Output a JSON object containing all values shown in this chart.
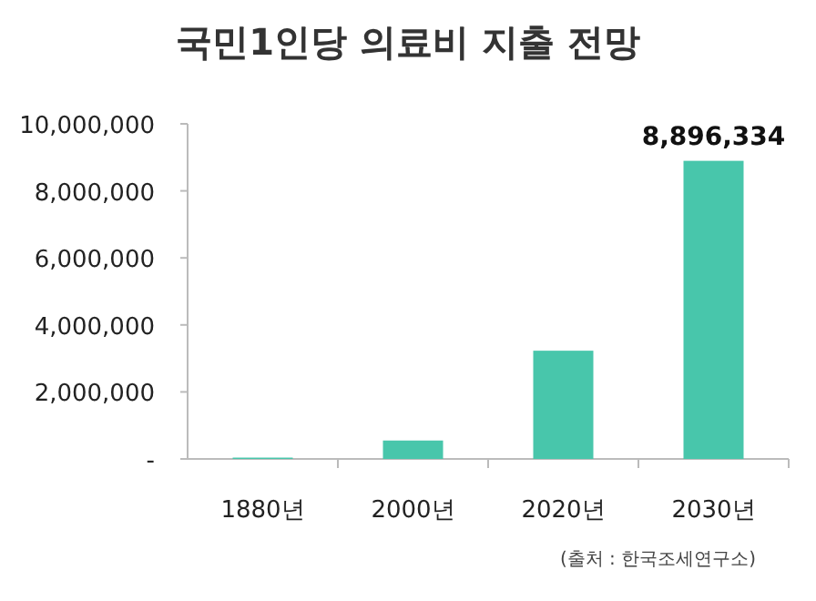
{
  "chart_data": {
    "type": "bar",
    "title": "국민1인당 의료비 지출 전망",
    "categories": [
      "1880년",
      "2000년",
      "2020년",
      "2030년"
    ],
    "values": [
      40000,
      550000,
      3230000,
      8896334
    ],
    "value_labels": [
      null,
      null,
      null,
      "8,896,334"
    ],
    "color": "#48c6ab",
    "ylim": [
      0,
      10000000
    ],
    "yticks": [
      {
        "value": 0,
        "label": "-"
      },
      {
        "value": 2000000,
        "label": "2,000,000"
      },
      {
        "value": 4000000,
        "label": "4,000,000"
      },
      {
        "value": 6000000,
        "label": "6,000,000"
      },
      {
        "value": 8000000,
        "label": "8,000,000"
      },
      {
        "value": 10000000,
        "label": "10,000,000"
      }
    ],
    "annotations": [
      "(출처 : 한국조세연구소)"
    ],
    "grid": false
  }
}
